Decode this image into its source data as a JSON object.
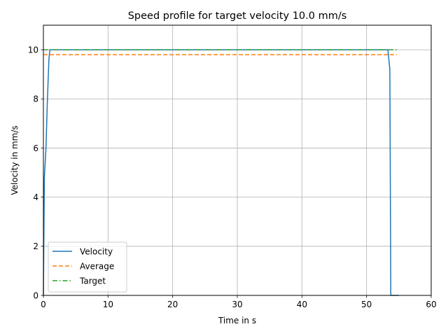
{
  "chart_data": {
    "type": "line",
    "title": "Speed profile for target velocity 10.0 mm/s",
    "xlabel": "Time in s",
    "ylabel": "Velocity in mm/s",
    "xlim": [
      0,
      60
    ],
    "ylim": [
      0,
      11
    ],
    "xticks": [
      0,
      10,
      20,
      30,
      40,
      50,
      60
    ],
    "yticks": [
      0,
      2,
      4,
      6,
      8,
      10
    ],
    "grid": true,
    "legend_location": "lower-left",
    "series": [
      {
        "name": "Velocity",
        "style": "solid",
        "color": "#1f77b4",
        "x": [
          0,
          0.15,
          0.4,
          0.6,
          0.85,
          1.0,
          53.3,
          53.6,
          53.7,
          53.75,
          55.0
        ],
        "y": [
          0,
          4.8,
          6.0,
          7.8,
          9.6,
          10.0,
          10.0,
          9.2,
          3.0,
          0.0,
          0.0
        ]
      },
      {
        "name": "Average",
        "style": "dashed",
        "color": "#ff7f0e",
        "x": [
          0,
          54.7
        ],
        "y": [
          9.8,
          9.8
        ]
      },
      {
        "name": "Target",
        "style": "dashdot",
        "color": "#2ca02c",
        "x": [
          0,
          54.7
        ],
        "y": [
          10.0,
          10.0
        ]
      }
    ]
  }
}
